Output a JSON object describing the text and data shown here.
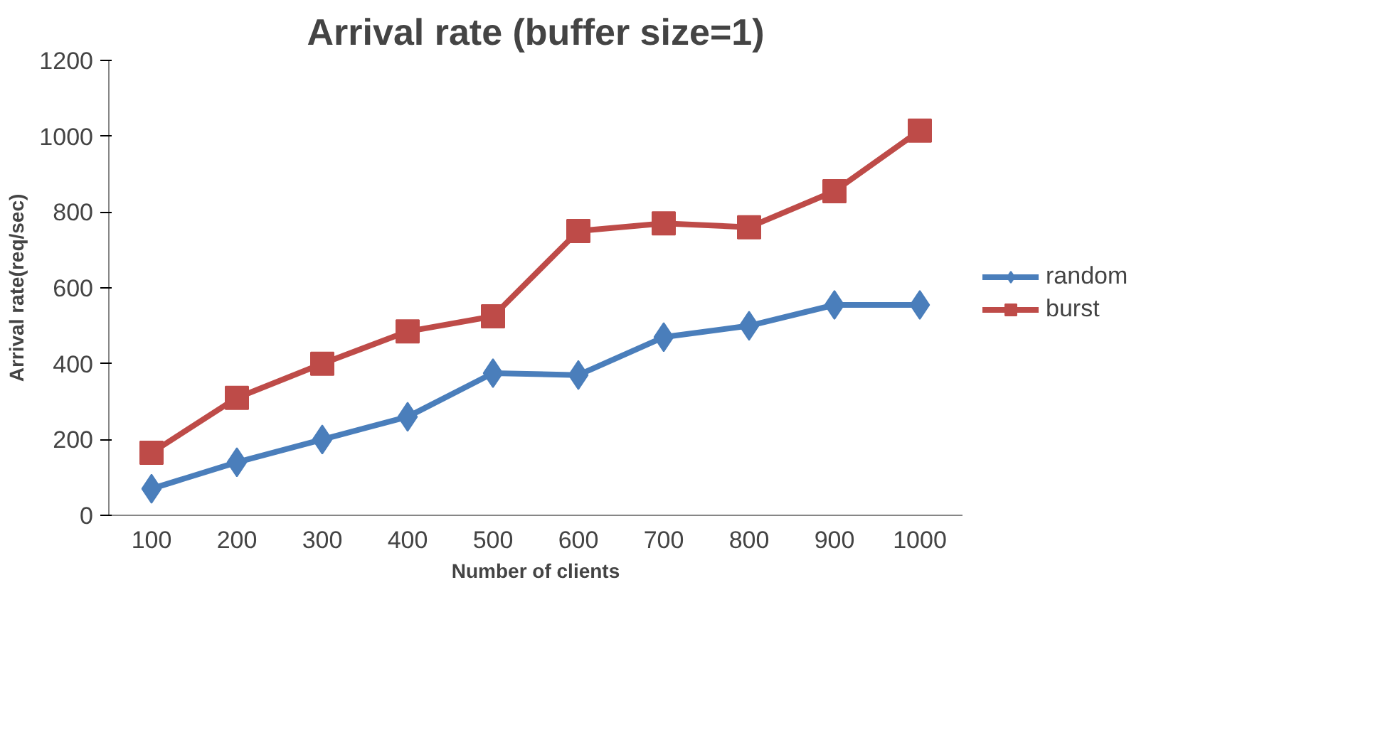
{
  "chart_data": {
    "type": "line",
    "title": "Arrival rate (buffer size=1)",
    "xlabel": "Number of clients",
    "ylabel": "Arrival rate(req/sec)",
    "categories": [
      "100",
      "200",
      "300",
      "400",
      "500",
      "600",
      "700",
      "800",
      "900",
      "1000"
    ],
    "series": [
      {
        "name": "random",
        "color": "#4a7ebb",
        "marker": "diamond",
        "values": [
          70,
          140,
          200,
          260,
          375,
          370,
          470,
          500,
          555,
          555
        ]
      },
      {
        "name": "burst",
        "color": "#be4b48",
        "marker": "square",
        "values": [
          165,
          310,
          400,
          485,
          525,
          750,
          770,
          760,
          855,
          1015
        ]
      }
    ],
    "ylim": [
      0,
      1200
    ],
    "yticks": [
      0,
      200,
      400,
      600,
      800,
      1000,
      1200
    ],
    "grid": false,
    "legend": "right",
    "line_style": "solid"
  }
}
